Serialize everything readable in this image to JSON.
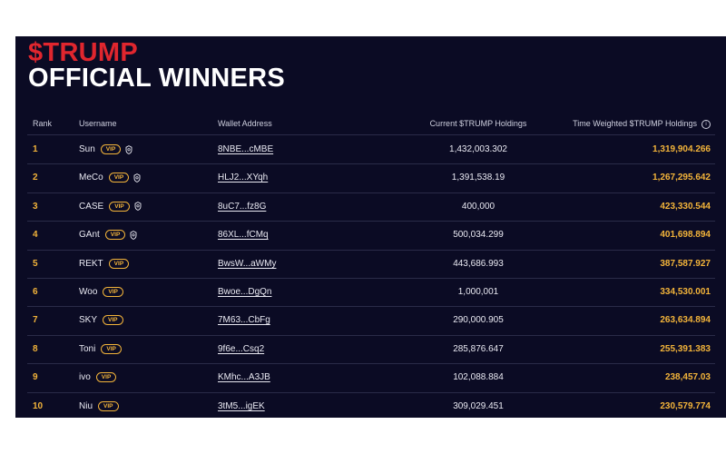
{
  "title": {
    "line1": "$TRUMP",
    "line2": "OFFICIAL WINNERS"
  },
  "columns": {
    "rank": "Rank",
    "username": "Username",
    "wallet": "Wallet Address",
    "current": "Current $TRUMP Holdings",
    "time_weighted": "Time Weighted $TRUMP Holdings"
  },
  "vip_label": "VIP",
  "rows": [
    {
      "rank": "1",
      "username": "Sun",
      "wallet": "8NBE...cMBE",
      "current": "1,432,003.302",
      "tw": "1,319,904.266",
      "verified": true
    },
    {
      "rank": "2",
      "username": "MeCo",
      "wallet": "HLJ2...XYqh",
      "current": "1,391,538.19",
      "tw": "1,267,295.642",
      "verified": true
    },
    {
      "rank": "3",
      "username": "CASE",
      "wallet": "8uC7...fz8G",
      "current": "400,000",
      "tw": "423,330.544",
      "verified": true
    },
    {
      "rank": "4",
      "username": "GAnt",
      "wallet": "86XL...fCMq",
      "current": "500,034.299",
      "tw": "401,698.894",
      "verified": true
    },
    {
      "rank": "5",
      "username": "REKT",
      "wallet": "BwsW...aWMy",
      "current": "443,686.993",
      "tw": "387,587.927",
      "verified": false
    },
    {
      "rank": "6",
      "username": "Woo",
      "wallet": "Bwoe...DgQn",
      "current": "1,000,001",
      "tw": "334,530.001",
      "verified": false
    },
    {
      "rank": "7",
      "username": "SKY",
      "wallet": "7M63...CbFg",
      "current": "290,000.905",
      "tw": "263,634.894",
      "verified": false
    },
    {
      "rank": "8",
      "username": "Toni",
      "wallet": "9f6e...Csq2",
      "current": "285,876.647",
      "tw": "255,391.383",
      "verified": false
    },
    {
      "rank": "9",
      "username": "ivo",
      "wallet": "KMhc...A3JB",
      "current": "102,088.884",
      "tw": "238,457.03",
      "verified": false
    },
    {
      "rank": "10",
      "username": "Niu",
      "wallet": "3tM5...igEK",
      "current": "309,029.451",
      "tw": "230,579.774",
      "verified": false
    }
  ],
  "colors": {
    "background": "#0b0b24",
    "accent_red": "#e0262e",
    "accent_gold": "#f3b43a"
  }
}
